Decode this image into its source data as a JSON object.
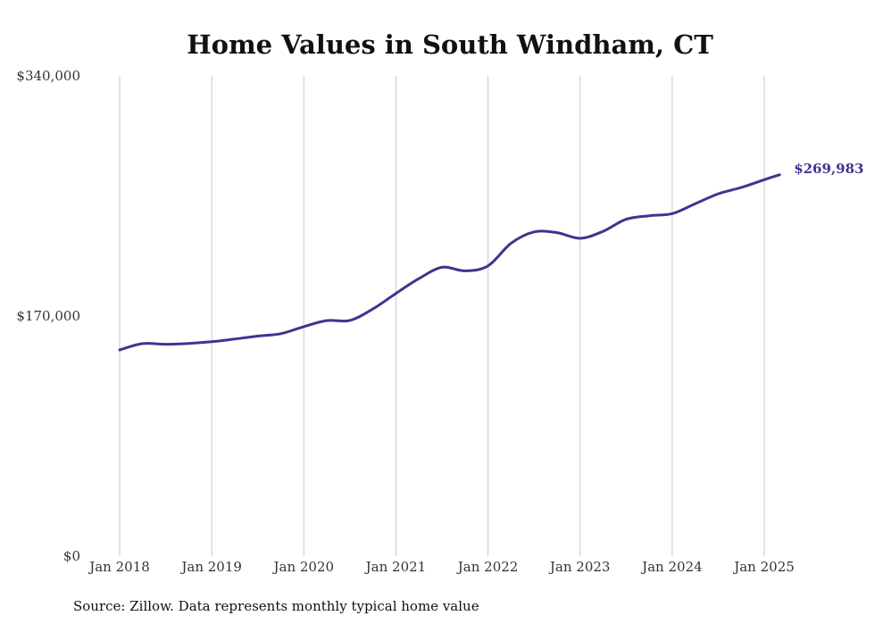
{
  "chart_data": {
    "type": "line",
    "title": "Home Values in South Windham, CT",
    "source": "Source: Zillow. Data represents monthly typical home value",
    "xlabel": "",
    "ylabel": "",
    "ylim": [
      0,
      340000
    ],
    "y_ticks": [
      {
        "value": 0,
        "label": "$0"
      },
      {
        "value": 170000,
        "label": "$170,000"
      },
      {
        "value": 340000,
        "label": "$340,000"
      }
    ],
    "xlim": [
      "2018-01",
      "2025-03"
    ],
    "x_ticks": [
      {
        "value": "2018-01",
        "label": "Jan 2018"
      },
      {
        "value": "2019-01",
        "label": "Jan 2019"
      },
      {
        "value": "2020-01",
        "label": "Jan 2020"
      },
      {
        "value": "2021-01",
        "label": "Jan 2021"
      },
      {
        "value": "2022-01",
        "label": "Jan 2022"
      },
      {
        "value": "2023-01",
        "label": "Jan 2023"
      },
      {
        "value": "2024-01",
        "label": "Jan 2024"
      },
      {
        "value": "2025-01",
        "label": "Jan 2025"
      }
    ],
    "grid": {
      "vertical": true,
      "horizontal": false
    },
    "line_color": "#3d3590",
    "end_label": "$269,983",
    "series": [
      {
        "x": [
          "2018-01",
          "2018-04",
          "2018-07",
          "2018-10",
          "2019-01",
          "2019-04",
          "2019-07",
          "2019-10",
          "2020-01",
          "2020-04",
          "2020-07",
          "2020-10",
          "2021-01",
          "2021-04",
          "2021-07",
          "2021-10",
          "2022-01",
          "2022-04",
          "2022-07",
          "2022-10",
          "2023-01",
          "2023-04",
          "2023-07",
          "2023-10",
          "2024-01",
          "2024-04",
          "2024-07",
          "2024-10",
          "2025-01",
          "2025-03"
        ],
        "y": [
          146000,
          150500,
          150000,
          150600,
          151800,
          153700,
          155800,
          157500,
          162500,
          166800,
          166900,
          175000,
          186000,
          196500,
          204500,
          202000,
          205500,
          221500,
          229500,
          229000,
          225000,
          230000,
          238500,
          241000,
          242500,
          249500,
          256500,
          261000,
          266500,
          269983
        ]
      }
    ]
  }
}
